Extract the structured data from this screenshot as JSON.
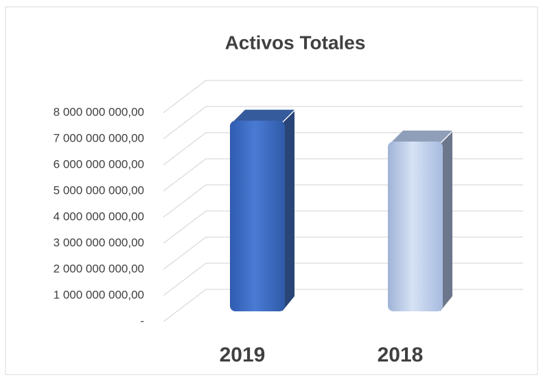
{
  "chart_data": {
    "type": "bar3d",
    "title": "Activos Totales",
    "categories": [
      "2019",
      "2018"
    ],
    "values": [
      7300000000,
      6500000000
    ],
    "colors": [
      "#4472c4",
      "#b4c7e7"
    ],
    "ylim": [
      0,
      8000000000
    ],
    "yticks": [
      {
        "value": 0,
        "label": "-"
      },
      {
        "value": 1000000000,
        "label": "1 000 000 000,00"
      },
      {
        "value": 2000000000,
        "label": "2 000 000 000,00"
      },
      {
        "value": 3000000000,
        "label": "3 000 000 000,00"
      },
      {
        "value": 4000000000,
        "label": "4 000 000 000,00"
      },
      {
        "value": 5000000000,
        "label": "5 000 000 000,00"
      },
      {
        "value": 6000000000,
        "label": "6 000 000 000,00"
      },
      {
        "value": 7000000000,
        "label": "7 000 000 000,00"
      },
      {
        "value": 8000000000,
        "label": "8 000 000 000,00"
      }
    ],
    "grid": true
  }
}
